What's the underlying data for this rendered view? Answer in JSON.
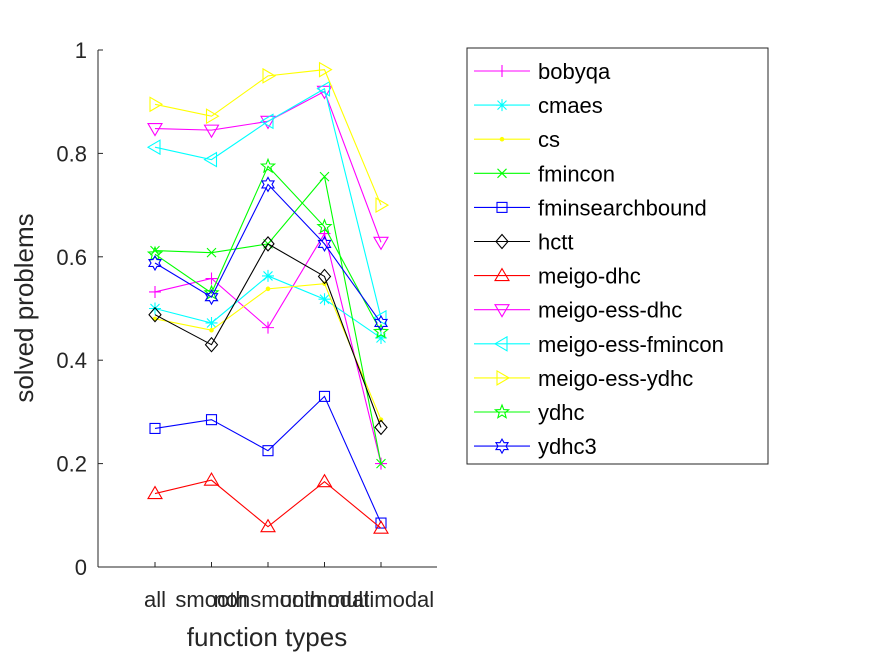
{
  "chart_data": {
    "type": "line",
    "xlabel": "function types",
    "ylabel": "solved problems",
    "categories": [
      "all",
      "smooth",
      "nonsmooth",
      "unimodal",
      "multimodal"
    ],
    "ylim": [
      0,
      1
    ],
    "yticks": [
      0,
      0.2,
      0.4,
      0.6,
      0.8,
      1
    ],
    "ytick_labels": [
      "0",
      "0.2",
      "0.4",
      "0.6",
      "0.8",
      "1"
    ],
    "grid": false,
    "legend_position": "right, outside plot",
    "series": [
      {
        "name": "bobyqa",
        "color": "#ff00ff",
        "marker": "plus",
        "values": [
          0.532,
          0.558,
          0.463,
          0.645,
          0.2
        ]
      },
      {
        "name": "cmaes",
        "color": "#00ffff",
        "marker": "asterisk",
        "values": [
          0.5,
          0.472,
          0.563,
          0.518,
          0.443
        ]
      },
      {
        "name": "cs",
        "color": "#ffff00",
        "marker": "point",
        "values": [
          0.48,
          0.458,
          0.538,
          0.548,
          0.285
        ]
      },
      {
        "name": "fmincon",
        "color": "#00ff00",
        "marker": "cross",
        "values": [
          0.612,
          0.608,
          0.625,
          0.755,
          0.2
        ]
      },
      {
        "name": "fminsearchbound",
        "color": "#0000ff",
        "marker": "square",
        "values": [
          0.268,
          0.285,
          0.225,
          0.33,
          0.085
        ]
      },
      {
        "name": "hctt",
        "color": "#000000",
        "marker": "diamond",
        "values": [
          0.488,
          0.43,
          0.625,
          0.562,
          0.27
        ]
      },
      {
        "name": "meigo-dhc",
        "color": "#ff0000",
        "marker": "triangle-up",
        "values": [
          0.142,
          0.168,
          0.078,
          0.165,
          0.075
        ]
      },
      {
        "name": "meigo-ess-dhc",
        "color": "#ff00ff",
        "marker": "triangle-down",
        "values": [
          0.848,
          0.845,
          0.862,
          0.92,
          0.628
        ]
      },
      {
        "name": "meigo-ess-fmincon",
        "color": "#00ffff",
        "marker": "triangle-left",
        "values": [
          0.812,
          0.788,
          0.862,
          0.925,
          0.482
        ]
      },
      {
        "name": "meigo-ess-ydhc",
        "color": "#ffff00",
        "marker": "triangle-right",
        "values": [
          0.895,
          0.872,
          0.95,
          0.962,
          0.7
        ]
      },
      {
        "name": "ydhc",
        "color": "#00ff00",
        "marker": "pentagram",
        "values": [
          0.605,
          0.53,
          0.775,
          0.658,
          0.455
        ]
      },
      {
        "name": "ydhc3",
        "color": "#0000ff",
        "marker": "hexagram",
        "values": [
          0.588,
          0.522,
          0.74,
          0.625,
          0.472
        ]
      }
    ]
  }
}
